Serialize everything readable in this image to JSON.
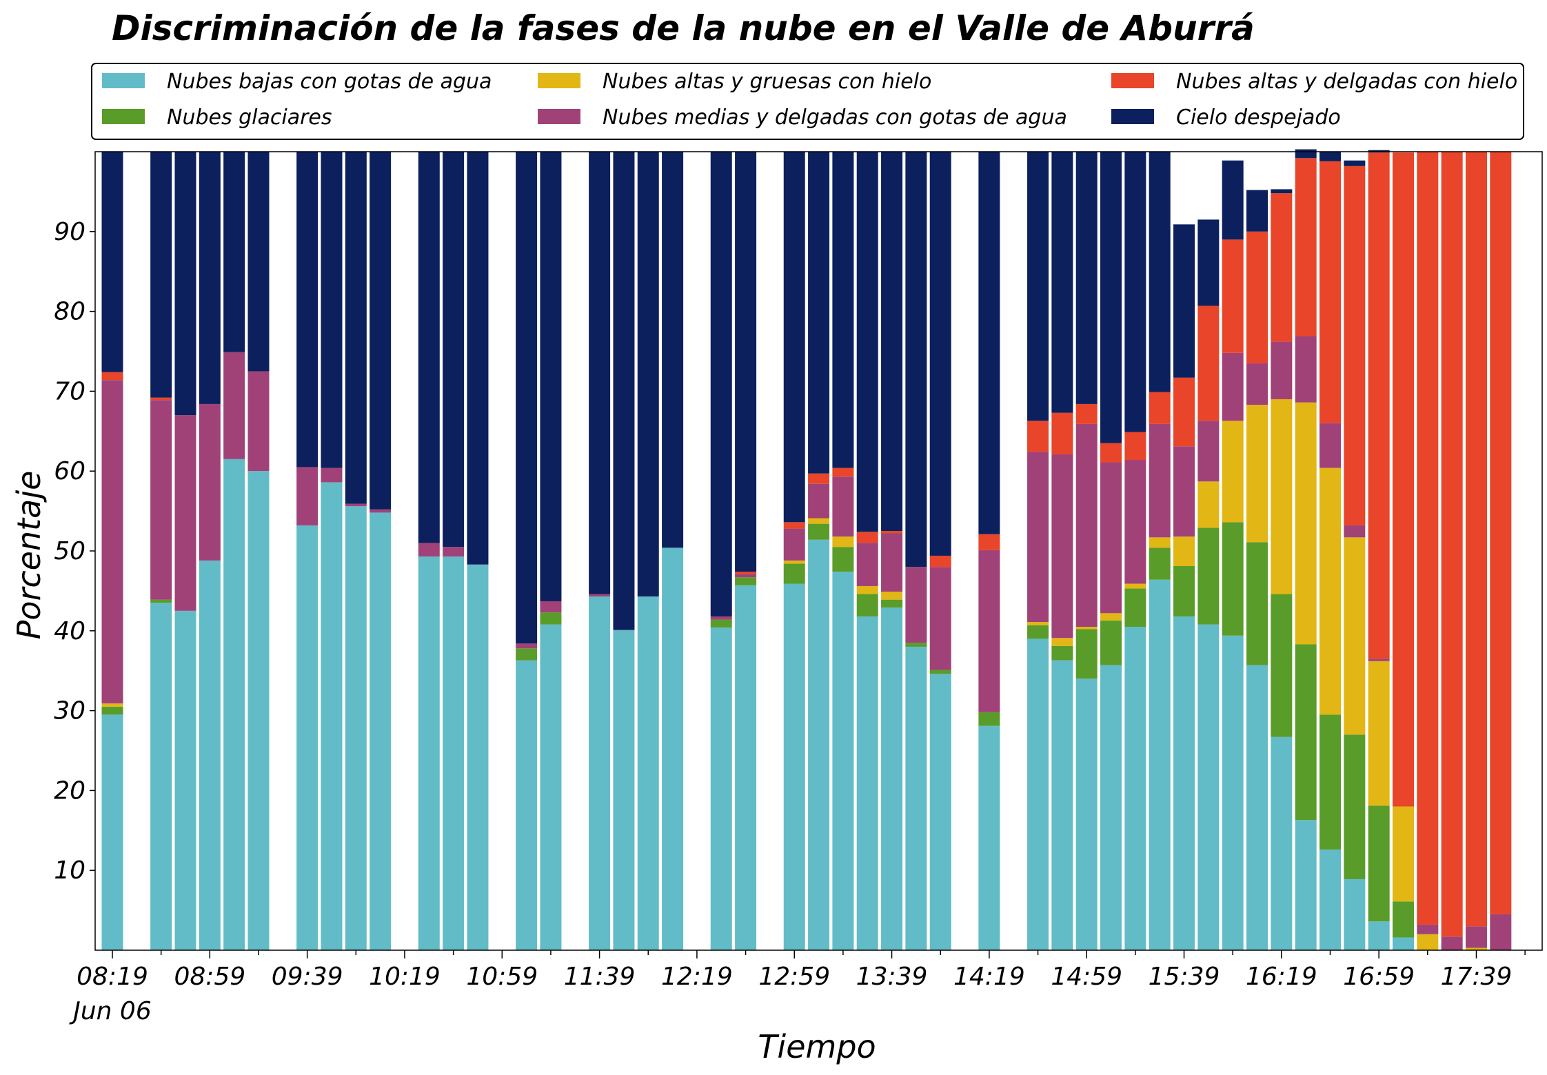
{
  "chart_data": {
    "type": "bar",
    "stacked": true,
    "title": "Discriminación de la fases de la nube en el Valle de Aburrá",
    "xlabel": "Tiempo",
    "ylabel": "Porcentaje",
    "ylim": [
      0,
      100
    ],
    "yticks": [
      10,
      20,
      30,
      40,
      50,
      60,
      70,
      80,
      90
    ],
    "x_start": "08:19",
    "interval_minutes": 10,
    "xtick_labels": [
      "08:19",
      "08:59",
      "09:39",
      "10:19",
      "10:59",
      "11:39",
      "12:19",
      "12:59",
      "13:39",
      "14:19",
      "14:59",
      "15:39",
      "16:19",
      "16:59",
      "17:39"
    ],
    "xtick_sublabel": "Jun 06",
    "legend_position": "top",
    "series": [
      {
        "name": "Nubes bajas con gotas de agua",
        "color": "#62bcc8",
        "values": [
          29.5,
          null,
          43.5,
          42.5,
          48.8,
          61.5,
          60.0,
          null,
          53.2,
          58.6,
          55.6,
          54.8,
          null,
          49.3,
          49.3,
          48.3,
          null,
          36.3,
          40.8,
          null,
          44.3,
          40.1,
          44.3,
          50.4,
          null,
          40.4,
          45.7,
          null,
          45.9,
          51.4,
          47.4,
          41.8,
          42.9,
          38.0,
          34.6,
          null,
          28.1,
          null,
          39.0,
          36.3,
          34.0,
          35.7,
          40.5,
          46.4,
          41.8,
          40.8,
          39.4,
          35.7,
          26.7,
          16.3,
          12.6,
          8.9,
          3.6,
          1.6,
          0,
          0,
          0,
          0,
          0
        ]
      },
      {
        "name": "Nubes glaciares",
        "color": "#5a9c2a",
        "values": [
          1.0,
          null,
          0.4,
          0,
          0,
          0,
          0,
          null,
          0,
          0,
          0,
          0,
          null,
          0,
          0,
          0,
          null,
          1.5,
          1.5,
          null,
          0,
          0,
          0,
          0,
          null,
          1.0,
          1.0,
          null,
          2.5,
          2.0,
          3.1,
          2.8,
          1.0,
          0.5,
          0.5,
          null,
          1.7,
          null,
          1.7,
          1.8,
          6.2,
          5.6,
          4.8,
          4.0,
          6.3,
          12.1,
          14.2,
          15.4,
          17.9,
          22.0,
          16.9,
          18.1,
          14.5,
          4.5,
          0,
          0,
          0,
          0,
          0
        ]
      },
      {
        "name": "Nubes altas y gruesas con hielo",
        "color": "#e2b614",
        "values": [
          0.4,
          null,
          0,
          0,
          0,
          0,
          0,
          null,
          0,
          0,
          0,
          0,
          null,
          0,
          0,
          0,
          null,
          0,
          0,
          null,
          0,
          0,
          0,
          0,
          null,
          0,
          0,
          null,
          0.4,
          0.7,
          1.3,
          1.0,
          1.0,
          0,
          0,
          null,
          0,
          null,
          0.4,
          1.0,
          0.3,
          0.9,
          0.6,
          1.3,
          3.7,
          5.8,
          12.7,
          17.2,
          24.4,
          30.3,
          30.9,
          24.7,
          18.1,
          11.9,
          2.0,
          0,
          0.3,
          0,
          0
        ]
      },
      {
        "name": "Nubes medias y delgadas con gotas de agua",
        "color": "#a04278",
        "values": [
          40.5,
          null,
          25.0,
          24.5,
          19.6,
          13.4,
          12.5,
          null,
          7.3,
          1.8,
          0.3,
          0.4,
          null,
          1.7,
          1.2,
          0,
          null,
          0.6,
          1.4,
          null,
          0.3,
          0,
          0,
          0,
          null,
          0.4,
          0.4,
          null,
          4.0,
          4.3,
          7.5,
          5.4,
          7.3,
          9.5,
          12.9,
          null,
          20.3,
          null,
          21.3,
          23.0,
          25.4,
          18.9,
          15.5,
          14.2,
          11.3,
          7.6,
          8.5,
          5.2,
          7.2,
          8.3,
          5.6,
          1.5,
          0.3,
          0,
          1.2,
          1.7,
          2.7,
          4.5,
          0
        ]
      },
      {
        "name": "Nubes altas y delgadas con hielo",
        "color": "#e8452a",
        "values": [
          1.0,
          null,
          0.3,
          0,
          0,
          0,
          0,
          null,
          0,
          0,
          0,
          0,
          null,
          0,
          0,
          0,
          null,
          0,
          0,
          null,
          0,
          0,
          0,
          0,
          null,
          0,
          0.3,
          null,
          0.8,
          1.3,
          1.1,
          1.4,
          0.3,
          0,
          1.4,
          null,
          2.0,
          null,
          3.9,
          5.2,
          2.5,
          2.4,
          3.5,
          4.0,
          8.6,
          14.4,
          14.2,
          16.5,
          18.6,
          22.3,
          32.8,
          45.0,
          63.4,
          81.9,
          96.8,
          98.3,
          97.0,
          95.5,
          0
        ]
      },
      {
        "name": "Cielo despejado",
        "color": "#0c205e",
        "values": [
          27.6,
          null,
          30.8,
          33.0,
          31.6,
          25.1,
          27.5,
          null,
          39.5,
          39.6,
          44.1,
          44.8,
          null,
          49.0,
          49.5,
          51.7,
          null,
          61.6,
          56.3,
          null,
          55.4,
          59.9,
          55.7,
          49.6,
          null,
          58.2,
          52.6,
          null,
          46.4,
          40.3,
          39.6,
          47.6,
          47.5,
          52.0,
          50.6,
          null,
          47.9,
          null,
          33.7,
          32.7,
          31.6,
          36.5,
          35.1,
          30.1,
          19.2,
          10.8,
          9.9,
          5.2,
          0.5,
          1.1,
          1.2,
          0.7,
          0.3,
          0,
          0,
          0,
          0,
          0,
          0
        ]
      }
    ]
  }
}
